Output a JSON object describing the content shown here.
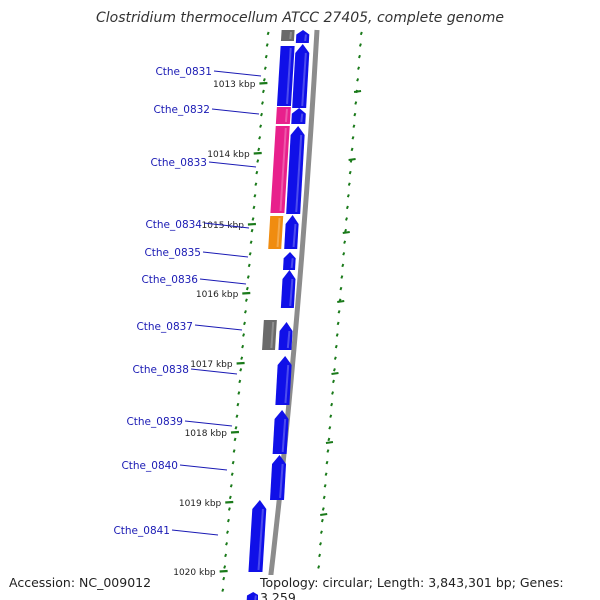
{
  "title": "Clostridium thermocellum ATCC 27405, complete genome",
  "footer": {
    "accession": "Accession: NC_009012",
    "summary": "Topology: circular; Length: 3,843,301 bp; Genes: 3,259"
  },
  "colors": {
    "gene_default": "#1010e8",
    "gene_highlight_pink": "#e8208c",
    "gene_highlight_orange": "#f08c10",
    "gene_gray": "#6a6a6a",
    "backbone": "#8c8c8c",
    "tick": "#1a7a1a",
    "label": "#1a1ab4"
  },
  "genes": [
    {
      "id": "Cthe_0831"
    },
    {
      "id": "Cthe_0832"
    },
    {
      "id": "Cthe_0833"
    },
    {
      "id": "Cthe_0834"
    },
    {
      "id": "Cthe_0835"
    },
    {
      "id": "Cthe_0836"
    },
    {
      "id": "Cthe_0837"
    },
    {
      "id": "Cthe_0838"
    },
    {
      "id": "Cthe_0839"
    },
    {
      "id": "Cthe_0840"
    },
    {
      "id": "Cthe_0841"
    }
  ],
  "kbp_ticks": [
    "1013 kbp",
    "1014 kbp",
    "1015 kbp",
    "1016 kbp",
    "1017 kbp",
    "1018 kbp",
    "1019 kbp",
    "1020 kbp"
  ]
}
